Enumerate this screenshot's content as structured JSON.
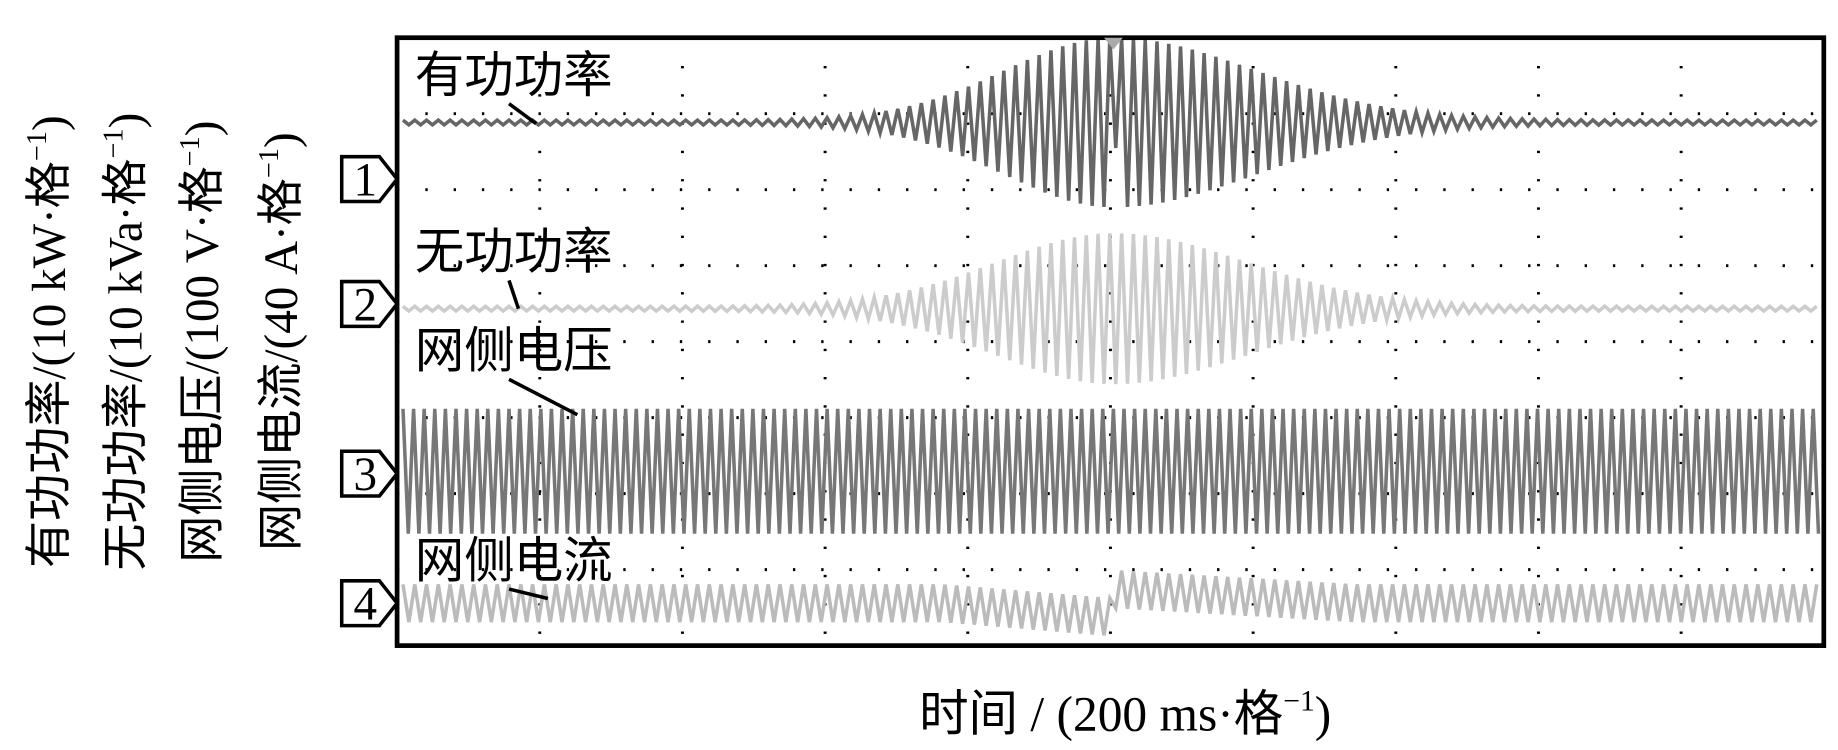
{
  "y_axis_labels": [
    {
      "text": "有功功率/(10 kW·格",
      "sup": "−1",
      "end": ")"
    },
    {
      "text": "无功功率/(10 kVa·格",
      "sup": "−1",
      "end": ")"
    },
    {
      "text": "网侧电压/(100 V·格",
      "sup": "−1",
      "end": ")"
    },
    {
      "text": "网侧电流/(40 A·格",
      "sup": "−1",
      "end": ")"
    }
  ],
  "traces": [
    {
      "channel": "1",
      "label": "有功功率"
    },
    {
      "channel": "2",
      "label": "无功功率"
    },
    {
      "channel": "3",
      "label": "网侧电压"
    },
    {
      "channel": "4",
      "label": "网侧电流"
    }
  ],
  "x_axis_label": {
    "text": "时间 / (200 ms·格",
    "sup": "−1",
    "end": ")"
  }
}
